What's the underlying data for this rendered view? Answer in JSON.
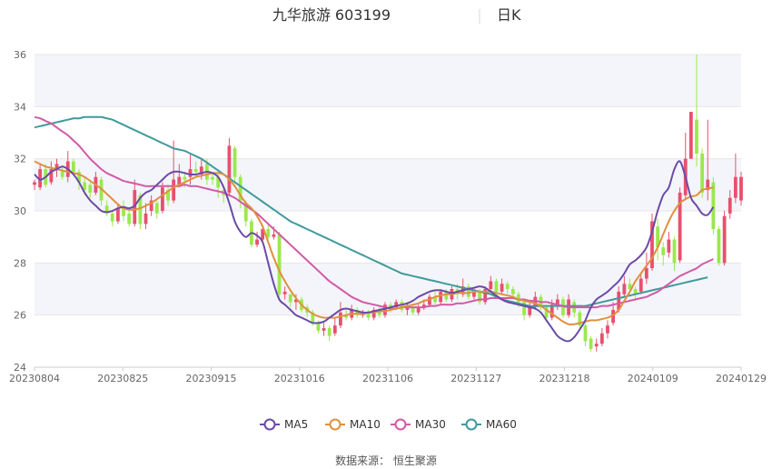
{
  "header": {
    "stock_name": "九华旅游 603199",
    "period": "日K"
  },
  "source": "数据来源： 恒生聚源",
  "colors": {
    "up": "#e8506e",
    "down": "#9be84d",
    "ma5": "#6b4ba7",
    "ma10": "#e0903e",
    "ma30": "#d25aa6",
    "ma60": "#3f9a9c",
    "band": "#f3f5fa",
    "grid": "#e6e6e6"
  },
  "chart_data": {
    "type": "candlestick",
    "ylim": [
      24,
      36
    ],
    "y_ticks": [
      "24",
      "26",
      "28",
      "30",
      "32",
      "34",
      "36"
    ],
    "x_tick_labels": [
      "20230804",
      "20230825",
      "20230915",
      "20231016",
      "20231106",
      "20231127",
      "20231218",
      "20240109",
      "20240129"
    ],
    "legend": [
      {
        "key": "ma5",
        "label": "MA5"
      },
      {
        "key": "ma10",
        "label": "MA10"
      },
      {
        "key": "ma30",
        "label": "MA30"
      },
      {
        "key": "ma60",
        "label": "MA60"
      }
    ],
    "candles": [
      [
        31.0,
        31.1,
        30.8,
        31.2
      ],
      [
        30.9,
        31.6,
        30.8,
        31.8
      ],
      [
        31.6,
        31.0,
        30.9,
        31.8
      ],
      [
        31.1,
        31.6,
        31.0,
        31.9
      ],
      [
        31.6,
        31.8,
        31.3,
        32.0
      ],
      [
        31.5,
        31.3,
        31.2,
        31.7
      ],
      [
        31.3,
        31.9,
        31.1,
        32.3
      ],
      [
        31.9,
        31.5,
        31.4,
        32.0
      ],
      [
        31.5,
        31.1,
        30.8,
        31.6
      ],
      [
        31.1,
        30.8,
        30.6,
        31.3
      ],
      [
        31.0,
        30.7,
        30.5,
        31.1
      ],
      [
        30.7,
        31.3,
        30.6,
        31.5
      ],
      [
        31.2,
        30.4,
        30.2,
        31.3
      ],
      [
        30.2,
        29.9,
        29.8,
        30.4
      ],
      [
        29.9,
        29.6,
        29.4,
        30.0
      ],
      [
        29.6,
        30.1,
        29.5,
        30.3
      ],
      [
        30.1,
        29.8,
        29.6,
        30.4
      ],
      [
        29.9,
        29.5,
        29.4,
        30.1
      ],
      [
        29.5,
        30.8,
        29.4,
        31.2
      ],
      [
        30.6,
        29.5,
        29.3,
        30.7
      ],
      [
        29.5,
        29.9,
        29.3,
        30.3
      ],
      [
        30.0,
        30.4,
        29.8,
        30.6
      ],
      [
        30.3,
        29.9,
        29.7,
        30.4
      ],
      [
        30.0,
        30.9,
        29.9,
        31.1
      ],
      [
        30.8,
        30.4,
        30.2,
        31.0
      ],
      [
        30.4,
        31.2,
        30.3,
        32.7
      ],
      [
        31.0,
        31.3,
        30.9,
        31.8
      ],
      [
        31.3,
        31.2,
        30.9,
        31.5
      ],
      [
        31.3,
        31.6,
        31.0,
        32.2
      ],
      [
        31.6,
        31.5,
        31.3,
        31.9
      ],
      [
        31.4,
        31.7,
        31.2,
        32.0
      ],
      [
        31.8,
        31.2,
        31.0,
        32.0
      ],
      [
        31.3,
        31.2,
        31.0,
        31.5
      ],
      [
        31.3,
        30.9,
        30.5,
        31.4
      ],
      [
        30.8,
        30.6,
        30.3,
        31.0
      ],
      [
        30.7,
        32.5,
        30.6,
        32.8
      ],
      [
        32.4,
        31.3,
        31.1,
        32.5
      ],
      [
        31.3,
        30.4,
        30.1,
        31.4
      ],
      [
        30.3,
        29.6,
        29.4,
        30.4
      ],
      [
        29.6,
        28.7,
        28.6,
        29.7
      ],
      [
        28.7,
        28.9,
        28.6,
        29.2
      ],
      [
        28.9,
        29.3,
        28.8,
        29.4
      ],
      [
        29.3,
        29.0,
        28.9,
        29.5
      ],
      [
        29.0,
        29.1,
        28.9,
        29.4
      ],
      [
        29.1,
        26.8,
        26.7,
        29.2
      ],
      [
        26.8,
        26.9,
        26.6,
        27.1
      ],
      [
        26.8,
        26.5,
        26.3,
        26.8
      ],
      [
        26.5,
        26.6,
        26.2,
        26.8
      ],
      [
        26.6,
        26.2,
        26.1,
        26.7
      ],
      [
        26.3,
        26.1,
        25.9,
        26.4
      ],
      [
        26.1,
        25.7,
        25.6,
        26.2
      ],
      [
        25.7,
        25.4,
        25.3,
        25.8
      ],
      [
        25.4,
        25.5,
        25.2,
        25.7
      ],
      [
        25.5,
        25.2,
        25.0,
        25.6
      ],
      [
        25.3,
        25.6,
        25.2,
        25.9
      ],
      [
        25.6,
        26.1,
        25.5,
        26.5
      ],
      [
        26.0,
        25.9,
        25.8,
        26.2
      ],
      [
        25.9,
        26.2,
        25.8,
        26.4
      ],
      [
        26.2,
        26.0,
        25.9,
        26.3
      ],
      [
        26.0,
        26.1,
        25.9,
        26.2
      ],
      [
        26.1,
        25.9,
        25.8,
        26.2
      ],
      [
        25.9,
        26.2,
        25.8,
        26.3
      ],
      [
        26.2,
        26.0,
        25.9,
        26.3
      ],
      [
        26.0,
        26.4,
        25.9,
        26.5
      ],
      [
        26.4,
        26.3,
        26.1,
        26.5
      ],
      [
        26.3,
        26.5,
        26.2,
        26.6
      ],
      [
        26.5,
        26.2,
        26.1,
        26.6
      ],
      [
        26.2,
        26.3,
        26.0,
        26.5
      ],
      [
        26.3,
        26.1,
        26.0,
        26.4
      ],
      [
        26.1,
        26.3,
        26.0,
        26.4
      ],
      [
        26.3,
        26.4,
        26.2,
        26.6
      ],
      [
        26.4,
        26.7,
        26.3,
        26.8
      ],
      [
        26.7,
        26.5,
        26.4,
        26.9
      ],
      [
        26.5,
        26.9,
        26.4,
        27.0
      ],
      [
        26.9,
        26.6,
        26.5,
        27.0
      ],
      [
        26.6,
        27.0,
        26.5,
        27.1
      ],
      [
        27.0,
        26.8,
        26.6,
        27.2
      ],
      [
        26.8,
        27.1,
        26.7,
        27.4
      ],
      [
        27.1,
        26.7,
        26.6,
        27.2
      ],
      [
        26.7,
        26.9,
        26.6,
        27.0
      ],
      [
        26.9,
        26.5,
        26.4,
        27.0
      ],
      [
        26.5,
        27.0,
        26.4,
        27.1
      ],
      [
        27.0,
        27.3,
        26.9,
        27.5
      ],
      [
        27.3,
        26.9,
        26.8,
        27.4
      ],
      [
        26.9,
        27.2,
        26.8,
        27.4
      ],
      [
        27.2,
        27.0,
        26.8,
        27.3
      ],
      [
        27.0,
        26.8,
        26.7,
        27.1
      ],
      [
        26.8,
        26.5,
        26.3,
        26.9
      ],
      [
        26.5,
        26.0,
        25.8,
        26.6
      ],
      [
        26.0,
        26.3,
        25.9,
        26.5
      ],
      [
        26.3,
        26.7,
        26.2,
        26.9
      ],
      [
        26.7,
        26.3,
        26.2,
        26.8
      ],
      [
        26.3,
        25.9,
        25.8,
        26.4
      ],
      [
        25.9,
        26.4,
        25.8,
        26.6
      ],
      [
        26.4,
        26.6,
        26.2,
        26.8
      ],
      [
        26.6,
        26.0,
        25.9,
        26.7
      ],
      [
        26.0,
        26.6,
        25.9,
        26.8
      ],
      [
        26.5,
        26.1,
        25.9,
        26.6
      ],
      [
        26.1,
        25.6,
        25.4,
        26.2
      ],
      [
        25.6,
        25.0,
        24.8,
        25.7
      ],
      [
        25.1,
        24.7,
        24.6,
        25.2
      ],
      [
        24.8,
        24.9,
        24.6,
        25.1
      ],
      [
        24.9,
        25.3,
        24.8,
        25.5
      ],
      [
        25.3,
        25.6,
        25.1,
        25.8
      ],
      [
        25.7,
        26.2,
        25.6,
        26.5
      ],
      [
        26.2,
        26.9,
        26.1,
        27.1
      ],
      [
        26.8,
        27.2,
        26.7,
        27.5
      ],
      [
        27.2,
        27.0,
        26.8,
        27.4
      ],
      [
        27.0,
        26.8,
        26.6,
        27.1
      ],
      [
        26.9,
        27.4,
        26.8,
        27.6
      ],
      [
        27.4,
        27.8,
        27.2,
        28.4
      ],
      [
        27.8,
        29.6,
        27.7,
        29.9
      ],
      [
        29.4,
        28.6,
        28.1,
        29.7
      ],
      [
        28.6,
        28.3,
        27.9,
        28.8
      ],
      [
        28.4,
        28.9,
        28.2,
        29.2
      ],
      [
        28.9,
        28.0,
        27.7,
        29.0
      ],
      [
        28.1,
        30.7,
        28.0,
        30.9
      ],
      [
        30.6,
        32.0,
        30.4,
        33.0
      ],
      [
        32.0,
        33.8,
        32.0,
        33.8
      ],
      [
        33.5,
        32.2,
        31.7,
        36.0
      ],
      [
        32.2,
        30.7,
        30.5,
        32.4
      ],
      [
        30.8,
        31.2,
        30.4,
        33.5
      ],
      [
        31.1,
        29.3,
        29.1,
        31.3
      ],
      [
        29.3,
        28.0,
        27.9,
        29.4
      ],
      [
        28.0,
        29.8,
        27.9,
        30.0
      ],
      [
        29.9,
        30.5,
        29.7,
        30.8
      ],
      [
        30.5,
        31.3,
        30.3,
        32.2
      ],
      [
        30.4,
        31.3,
        30.2,
        31.5
      ]
    ],
    "ma5": [
      31.4,
      31.2,
      31.3,
      31.5,
      31.6,
      31.7,
      31.6,
      31.4,
      31.1,
      30.7,
      30.4,
      30.2,
      30.0,
      29.95,
      30.0,
      30.1,
      30.15,
      30.1,
      30.2,
      30.5,
      30.7,
      30.8,
      31.0,
      31.2,
      31.4,
      31.5,
      31.5,
      31.45,
      31.4,
      31.4,
      31.45,
      31.5,
      31.45,
      31.3,
      30.9,
      30.3,
      29.6,
      29.2,
      29.0,
      29.15,
      29.05,
      28.8,
      28.0,
      27.2,
      26.6,
      26.4,
      26.2,
      26.0,
      25.9,
      25.8,
      25.7,
      25.7,
      25.75,
      25.9,
      26.05,
      26.2,
      26.25,
      26.2,
      26.15,
      26.1,
      26.1,
      26.15,
      26.2,
      26.25,
      26.3,
      26.35,
      26.4,
      26.45,
      26.55,
      26.7,
      26.8,
      26.9,
      26.95,
      26.95,
      26.9,
      26.85,
      26.9,
      26.95,
      27.0,
      27.05,
      27.1,
      27.05,
      26.9,
      26.75,
      26.6,
      26.5,
      26.45,
      26.4,
      26.35,
      26.3,
      26.25,
      26.1,
      25.8,
      25.5,
      25.2,
      25.05,
      25.0,
      25.15,
      25.45,
      25.8,
      26.3,
      26.6,
      26.75,
      26.9,
      27.1,
      27.3,
      27.6,
      27.95,
      28.1,
      28.3,
      28.6,
      29.2,
      30.0,
      30.6,
      30.9,
      31.6,
      31.9,
      31.3,
      30.5,
      30.2,
      29.9,
      29.85,
      30.15
    ],
    "ma10": [
      31.9,
      31.8,
      31.7,
      31.65,
      31.6,
      31.55,
      31.5,
      31.45,
      31.4,
      31.3,
      31.15,
      31.0,
      30.85,
      30.65,
      30.45,
      30.25,
      30.1,
      30.05,
      30.05,
      30.1,
      30.2,
      30.3,
      30.45,
      30.6,
      30.75,
      30.9,
      31.0,
      31.1,
      31.2,
      31.3,
      31.35,
      31.4,
      31.45,
      31.45,
      31.4,
      31.2,
      30.95,
      30.6,
      30.3,
      30.1,
      29.8,
      29.4,
      28.8,
      28.2,
      27.7,
      27.3,
      26.95,
      26.65,
      26.4,
      26.2,
      26.05,
      25.95,
      25.9,
      25.9,
      25.9,
      25.95,
      26.0,
      26.05,
      26.05,
      26.05,
      26.1,
      26.1,
      26.15,
      26.15,
      26.2,
      26.25,
      26.3,
      26.35,
      26.4,
      26.45,
      26.55,
      26.6,
      26.7,
      26.75,
      26.8,
      26.8,
      26.85,
      26.85,
      26.85,
      26.9,
      26.9,
      26.9,
      26.9,
      26.85,
      26.8,
      26.75,
      26.7,
      26.6,
      26.55,
      26.5,
      26.45,
      26.35,
      26.2,
      26.05,
      25.9,
      25.75,
      25.65,
      25.65,
      25.7,
      25.75,
      25.8,
      25.8,
      25.85,
      25.9,
      26.0,
      26.2,
      26.55,
      26.9,
      27.3,
      27.6,
      27.9,
      28.2,
      28.6,
      29.1,
      29.6,
      30.0,
      30.3,
      30.45,
      30.55,
      30.6,
      30.8,
      30.85,
      30.9
    ],
    "ma30": [
      33.6,
      33.55,
      33.45,
      33.35,
      33.2,
      33.05,
      32.9,
      32.7,
      32.5,
      32.25,
      32.0,
      31.8,
      31.6,
      31.45,
      31.35,
      31.25,
      31.15,
      31.1,
      31.05,
      31.0,
      30.95,
      30.95,
      30.95,
      30.95,
      30.95,
      30.95,
      30.95,
      31.0,
      30.95,
      30.95,
      30.9,
      30.85,
      30.8,
      30.75,
      30.7,
      30.6,
      30.5,
      30.35,
      30.2,
      30.05,
      29.9,
      29.7,
      29.5,
      29.3,
      29.1,
      28.9,
      28.7,
      28.5,
      28.3,
      28.1,
      27.9,
      27.7,
      27.5,
      27.3,
      27.15,
      27.0,
      26.85,
      26.7,
      26.6,
      26.5,
      26.45,
      26.4,
      26.35,
      26.3,
      26.25,
      26.25,
      26.3,
      26.3,
      26.3,
      26.3,
      26.3,
      26.35,
      26.35,
      26.4,
      26.4,
      26.4,
      26.45,
      26.45,
      26.5,
      26.55,
      26.6,
      26.6,
      26.65,
      26.65,
      26.65,
      26.65,
      26.65,
      26.6,
      26.6,
      26.55,
      26.55,
      26.5,
      26.5,
      26.45,
      26.4,
      26.35,
      26.3,
      26.3,
      26.3,
      26.3,
      26.3,
      26.3,
      26.35,
      26.35,
      26.4,
      26.45,
      26.5,
      26.55,
      26.6,
      26.65,
      26.7,
      26.8,
      26.9,
      27.05,
      27.2,
      27.35,
      27.5,
      27.6,
      27.7,
      27.8,
      27.95,
      28.05,
      28.15
    ],
    "ma60": [
      33.2,
      33.25,
      33.3,
      33.35,
      33.4,
      33.45,
      33.5,
      33.55,
      33.55,
      33.6,
      33.6,
      33.6,
      33.6,
      33.55,
      33.5,
      33.4,
      33.3,
      33.2,
      33.1,
      33.0,
      32.9,
      32.8,
      32.7,
      32.6,
      32.5,
      32.4,
      32.35,
      32.3,
      32.2,
      32.1,
      32.0,
      31.85,
      31.7,
      31.55,
      31.4,
      31.25,
      31.1,
      30.95,
      30.8,
      30.65,
      30.5,
      30.35,
      30.2,
      30.05,
      29.9,
      29.75,
      29.6,
      29.5,
      29.4,
      29.3,
      29.2,
      29.1,
      29.0,
      28.9,
      28.8,
      28.7,
      28.6,
      28.5,
      28.4,
      28.3,
      28.2,
      28.1,
      28.0,
      27.9,
      27.8,
      27.7,
      27.6,
      27.55,
      27.5,
      27.45,
      27.4,
      27.35,
      27.3,
      27.25,
      27.2,
      27.15,
      27.1,
      27.05,
      27.0,
      26.95,
      26.9,
      26.85,
      26.8,
      26.7,
      26.6,
      26.55,
      26.5,
      26.45,
      26.4,
      26.35,
      26.35,
      26.35,
      26.35,
      26.35,
      26.35,
      26.35,
      26.35,
      26.35,
      26.35,
      26.35,
      26.4,
      26.45,
      26.5,
      26.55,
      26.6,
      26.65,
      26.7,
      26.75,
      26.8,
      26.85,
      26.9,
      26.95,
      27.0,
      27.05,
      27.1,
      27.15,
      27.2,
      27.25,
      27.3,
      27.35,
      27.4,
      27.45
    ]
  }
}
